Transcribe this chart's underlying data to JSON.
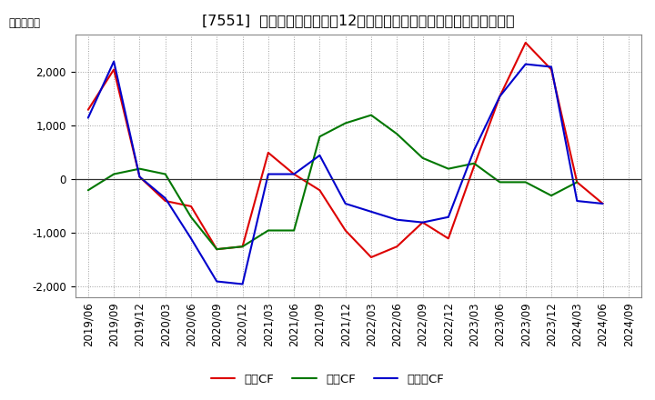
{
  "title": "[7551]  キャッシュフローの12か月移動合計の対前年同期増減額の推移",
  "ylabel": "（百万円）",
  "x_labels": [
    "2019/06",
    "2019/09",
    "2019/12",
    "2020/03",
    "2020/06",
    "2020/09",
    "2020/12",
    "2021/03",
    "2021/06",
    "2021/09",
    "2021/12",
    "2022/03",
    "2022/06",
    "2022/09",
    "2022/12",
    "2023/03",
    "2023/06",
    "2023/09",
    "2023/12",
    "2024/03",
    "2024/06",
    "2024/09"
  ],
  "series": [
    {
      "name": "営業CF",
      "color": "#dd0000",
      "values": [
        1300,
        2050,
        50,
        -400,
        -500,
        -1300,
        -1250,
        500,
        100,
        -200,
        -950,
        -1450,
        -1250,
        -800,
        -1100,
        250,
        1550,
        2550,
        2050,
        -50,
        -450,
        null
      ]
    },
    {
      "name": "投資CF",
      "color": "#007700",
      "values": [
        -200,
        100,
        200,
        100,
        -700,
        -1300,
        -1250,
        -950,
        -950,
        800,
        1050,
        1200,
        850,
        400,
        200,
        300,
        -50,
        -50,
        -300,
        -50,
        null,
        null
      ]
    },
    {
      "name": "フリーCF",
      "color": "#0000cc",
      "values": [
        1150,
        2200,
        50,
        -350,
        -1100,
        -1900,
        -1950,
        100,
        100,
        450,
        -450,
        -600,
        -750,
        -800,
        -700,
        550,
        1550,
        2150,
        2100,
        -400,
        -450,
        null
      ]
    }
  ],
  "ylim": [
    -2200,
    2700
  ],
  "yticks": [
    -2000,
    -1000,
    0,
    1000,
    2000
  ],
  "background_color": "#ffffff",
  "plot_bg_color": "#ffffff",
  "grid_color": "#aaaaaa",
  "title_fontsize": 11.5,
  "legend_fontsize": 9.5,
  "tick_fontsize": 8.5
}
